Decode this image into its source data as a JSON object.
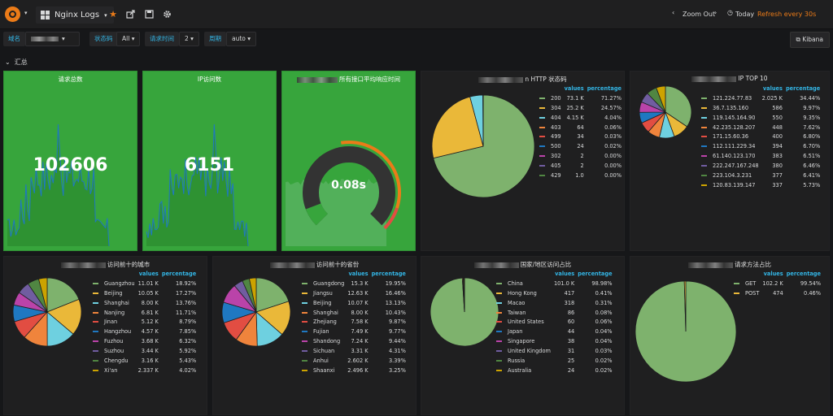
{
  "nav": {
    "dashboard_title": "Nginx Logs",
    "zoom_out": "Zoom Out",
    "time_range": "Today",
    "refresh": "Refresh every 30s"
  },
  "vars": {
    "domain_label": "域名",
    "status_label": "状态码",
    "status_value": "All",
    "time_label": "请求时间",
    "time_value": "2",
    "period_label": "周期",
    "period_value": "auto",
    "kibana": "Kibana"
  },
  "row_title": "汇总",
  "panels": {
    "total_requests": {
      "title": "请求总数",
      "value": "102606"
    },
    "ip_visits": {
      "title": "IP访问数",
      "value": "6151"
    },
    "avg_response": {
      "title": "所有接口平均响应时间",
      "value": "0.08s"
    },
    "http_status": {
      "title": "n HTTP 状态码"
    },
    "ip_top": {
      "title": "IP TOP 10"
    },
    "cities": {
      "title": "访问前十的城市"
    },
    "provinces": {
      "title": "访问前十的省份"
    },
    "countries": {
      "title": "国家/地区访问占比"
    },
    "methods": {
      "title": "请求方法占比"
    }
  },
  "legend_headers": {
    "values": "values",
    "percentage": "percentage"
  },
  "colors": {
    "green": "#7eb26d",
    "yellow": "#eab839",
    "cyan": "#6ed0e0",
    "orange": "#ef843c",
    "red": "#e24d42",
    "blue": "#1f78c1",
    "pink": "#ba43a9",
    "violet": "#705da0",
    "dark_green": "#508642",
    "dark_yellow": "#cca300",
    "stat_bg": "#37a53c"
  },
  "chart_data": [
    {
      "type": "pie",
      "title": "HTTP 状态码",
      "labels": [
        "200",
        "304",
        "404",
        "403",
        "499",
        "500",
        "302",
        "405",
        "429"
      ],
      "display_values": [
        "73.1 K",
        "25.2 K",
        "4.15 K",
        "64",
        "34",
        "24",
        "2",
        "2",
        "1.0"
      ],
      "values": [
        73100,
        25200,
        4150,
        64,
        34,
        24,
        2,
        2,
        1
      ],
      "percentages": [
        "71.27%",
        "24.57%",
        "4.04%",
        "0.06%",
        "0.03%",
        "0.02%",
        "0.00%",
        "0.00%",
        "0.00%"
      ]
    },
    {
      "type": "pie",
      "title": "IP TOP 10",
      "labels": [
        "121.224.77.83",
        "36.7.135.160",
        "119.145.164.90",
        "42.235.128.207",
        "171.15.60.36",
        "112.111.229.34",
        "61.140.123.170",
        "222.247.167.248",
        "223.104.3.231",
        "120.83.139.147"
      ],
      "display_values": [
        "2.025 K",
        "586",
        "550",
        "448",
        "400",
        "394",
        "383",
        "380",
        "377",
        "337"
      ],
      "values": [
        2025,
        586,
        550,
        448,
        400,
        394,
        383,
        380,
        377,
        337
      ],
      "percentages": [
        "34.44%",
        "9.97%",
        "9.35%",
        "7.62%",
        "6.80%",
        "6.70%",
        "6.51%",
        "6.46%",
        "6.41%",
        "5.73%"
      ]
    },
    {
      "type": "pie",
      "title": "访问前十的城市",
      "labels": [
        "Guangzhou",
        "Beijing",
        "Shanghai",
        "Nanjing",
        "Jinan",
        "Hangzhou",
        "Fuzhou",
        "Suzhou",
        "Chengdu",
        "Xi'an"
      ],
      "display_values": [
        "11.01 K",
        "10.05 K",
        "8.00 K",
        "6.81 K",
        "5.12 K",
        "4.57 K",
        "3.68 K",
        "3.44 K",
        "3.16 K",
        "2.337 K"
      ],
      "values": [
        11010,
        10050,
        8000,
        6810,
        5120,
        4570,
        3680,
        3440,
        3160,
        2337
      ],
      "percentages": [
        "18.92%",
        "17.27%",
        "13.76%",
        "11.71%",
        "8.79%",
        "7.85%",
        "6.32%",
        "5.92%",
        "5.43%",
        "4.02%"
      ]
    },
    {
      "type": "pie",
      "title": "访问前十的省份",
      "labels": [
        "Guangdong",
        "Jiangsu",
        "Beijing",
        "Shanghai",
        "Zhejiang",
        "Fujian",
        "Shandong",
        "Sichuan",
        "Anhui",
        "Shaanxi"
      ],
      "display_values": [
        "15.3 K",
        "12.63 K",
        "10.07 K",
        "8.00 K",
        "7.58 K",
        "7.49 K",
        "7.24 K",
        "3.31 K",
        "2.602 K",
        "2.496 K"
      ],
      "values": [
        15300,
        12630,
        10070,
        8000,
        7580,
        7490,
        7240,
        3310,
        2602,
        2496
      ],
      "percentages": [
        "19.95%",
        "16.46%",
        "13.13%",
        "10.43%",
        "9.87%",
        "9.77%",
        "9.44%",
        "4.31%",
        "3.39%",
        "3.25%"
      ]
    },
    {
      "type": "pie",
      "title": "国家/地区访问占比",
      "labels": [
        "China",
        "Hong Kong",
        "Macao",
        "Taiwan",
        "United States",
        "Japan",
        "Singapore",
        "United Kingdom",
        "Russia",
        "Australia"
      ],
      "display_values": [
        "101.0 K",
        "417",
        "318",
        "86",
        "60",
        "44",
        "38",
        "31",
        "25",
        "24"
      ],
      "values": [
        101000,
        417,
        318,
        86,
        60,
        44,
        38,
        31,
        25,
        24
      ],
      "percentages": [
        "98.98%",
        "0.41%",
        "0.31%",
        "0.08%",
        "0.06%",
        "0.04%",
        "0.04%",
        "0.03%",
        "0.02%",
        "0.02%"
      ]
    },
    {
      "type": "pie",
      "title": "请求方法占比",
      "labels": [
        "GET",
        "POST"
      ],
      "display_values": [
        "102.2 K",
        "474"
      ],
      "values": [
        102200,
        474
      ],
      "percentages": [
        "99.54%",
        "0.46%"
      ]
    },
    {
      "type": "gauge",
      "title": "所有接口平均响应时间",
      "value": 0.08,
      "display": "0.08s"
    }
  ]
}
